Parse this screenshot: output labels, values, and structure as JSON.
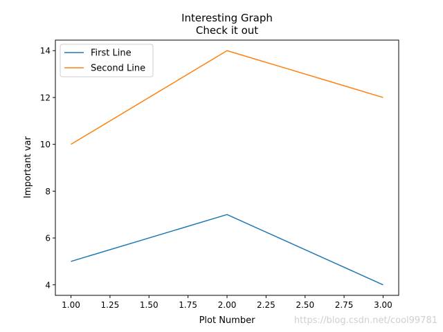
{
  "chart_data": {
    "type": "line",
    "title": "Interesting Graph\nCheck it out",
    "xlabel": "Plot Number",
    "ylabel": "Important var",
    "x": [
      1,
      2,
      3
    ],
    "series": [
      {
        "name": "First Line",
        "values": [
          5,
          7,
          4
        ],
        "color": "#1f77b4"
      },
      {
        "name": "Second Line",
        "values": [
          10,
          14,
          12
        ],
        "color": "#ff7f0e"
      }
    ],
    "xlim": [
      0.9,
      3.1
    ],
    "ylim": [
      3.55,
      14.45
    ],
    "x_ticks": [
      1.0,
      1.25,
      1.5,
      1.75,
      2.0,
      2.25,
      2.5,
      2.75,
      3.0
    ],
    "x_tick_labels": [
      "1.00",
      "1.25",
      "1.50",
      "1.75",
      "2.00",
      "2.25",
      "2.50",
      "2.75",
      "3.00"
    ],
    "y_ticks": [
      4,
      6,
      8,
      10,
      12,
      14
    ],
    "y_tick_labels": [
      "4",
      "6",
      "8",
      "10",
      "12",
      "14"
    ],
    "grid": false,
    "legend_position": "upper-left"
  },
  "watermark": "https://blog.csdn.net/cool99781"
}
